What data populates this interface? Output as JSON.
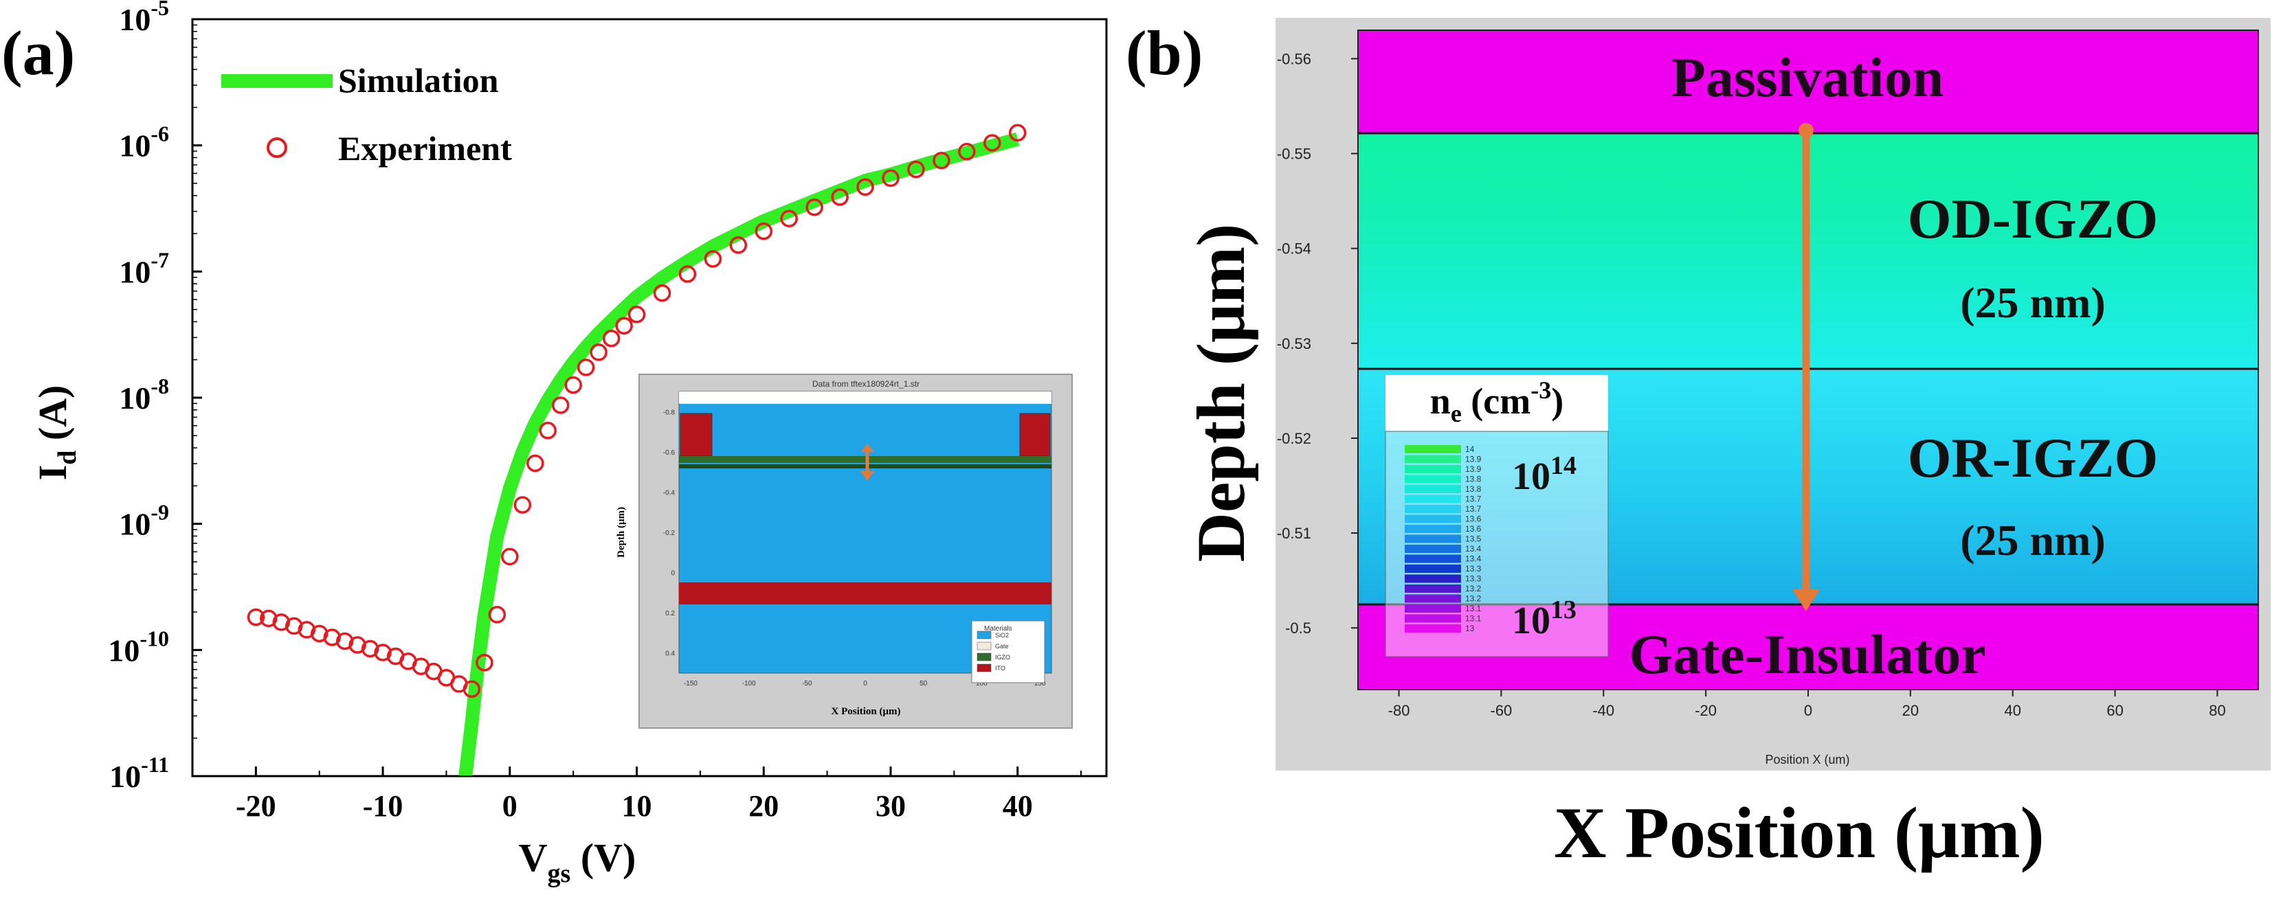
{
  "chart_data": [
    {
      "panel_label": "(a)",
      "type": "scatter",
      "xlabel": {
        "main": "V",
        "sub": "gs",
        "unit": " (V)"
      },
      "ylabel": {
        "main": "I",
        "sub": "d",
        "unit": " (A)"
      },
      "xlim": [
        -25,
        47
      ],
      "ylim_log10": [
        -11,
        -5
      ],
      "x_ticks": [
        -20,
        -10,
        0,
        10,
        20,
        30,
        40
      ],
      "y_ticks_exp": [
        -11,
        -10,
        -9,
        -8,
        -7,
        -6,
        -5
      ],
      "legend": {
        "position": "top-left",
        "simulation": "Simulation",
        "experiment": "Experiment"
      },
      "series": [
        {
          "name": "Simulation",
          "style": "line",
          "color": "#33ee22",
          "x": [
            -3.5,
            -3,
            -2.5,
            -2,
            -1,
            0,
            1,
            2,
            3,
            4,
            5,
            6,
            7,
            8,
            10,
            12,
            14,
            16,
            18,
            20,
            22,
            25,
            28,
            30,
            33,
            36,
            40
          ],
          "log10_y": [
            -11.0,
            -10.58,
            -10.12,
            -9.72,
            -9.1,
            -8.72,
            -8.43,
            -8.2,
            -8.02,
            -7.86,
            -7.72,
            -7.6,
            -7.49,
            -7.39,
            -7.2,
            -7.05,
            -6.92,
            -6.8,
            -6.7,
            -6.6,
            -6.52,
            -6.4,
            -6.28,
            -6.23,
            -6.14,
            -6.06,
            -5.95
          ]
        },
        {
          "name": "Experiment",
          "style": "markers",
          "marker_color": "#e8191f",
          "x": [
            -20,
            -19,
            -18,
            -17,
            -16,
            -15,
            -14,
            -13,
            -12,
            -11,
            -10,
            -9,
            -8,
            -7,
            -6,
            -5,
            -4,
            -3,
            -2,
            -1,
            0,
            1,
            2,
            3,
            4,
            5,
            6,
            7,
            8,
            9,
            10,
            12,
            14,
            16,
            18,
            20,
            22,
            24,
            26,
            28,
            30,
            32,
            34,
            36,
            38,
            40
          ],
          "log10_y": [
            -9.74,
            -9.75,
            -9.78,
            -9.81,
            -9.84,
            -9.87,
            -9.9,
            -9.93,
            -9.96,
            -9.99,
            -10.02,
            -10.05,
            -10.09,
            -10.13,
            -10.17,
            -10.22,
            -10.27,
            -10.31,
            -10.1,
            -9.72,
            -9.26,
            -8.85,
            -8.52,
            -8.26,
            -8.06,
            -7.9,
            -7.76,
            -7.64,
            -7.53,
            -7.43,
            -7.34,
            -7.17,
            -7.02,
            -6.9,
            -6.79,
            -6.68,
            -6.58,
            -6.49,
            -6.41,
            -6.33,
            -6.26,
            -6.19,
            -6.12,
            -6.05,
            -5.98,
            -5.9
          ]
        }
      ],
      "inset": {
        "title": "Data from tftex180924rt_1.str",
        "xlabel": "X Position (μm)",
        "ylabel": "Depth (μm)",
        "x_ticks": [
          -150,
          -100,
          -50,
          0,
          50,
          100,
          150
        ],
        "y_ticks": [
          -0.8,
          -0.6,
          -0.4,
          -0.2,
          0,
          0.2,
          0.4
        ],
        "legend_title": "Materials",
        "materials": [
          "SiO2",
          "Gate",
          "IGZO",
          "ITO"
        ],
        "material_colors": [
          "#1fa4e8",
          "#f0ede0",
          "#2e6e2a",
          "#b5141c"
        ]
      }
    },
    {
      "panel_label": "(b)",
      "type": "heatmap",
      "xlabel": "X Position (μm)",
      "ylabel": "Depth (μm)",
      "inner_xlabel": "Position X (um)",
      "xlim": [
        -88,
        88
      ],
      "ylim": [
        -0.563,
        -0.4935
      ],
      "x_ticks": [
        -80,
        -60,
        -40,
        -20,
        0,
        20,
        40,
        60,
        80
      ],
      "y_ticks": [
        -0.56,
        -0.55,
        -0.54,
        -0.53,
        -0.52,
        -0.51,
        -0.5
      ],
      "layers": [
        {
          "name": "Passivation",
          "top": -0.563,
          "bottom": -0.55,
          "color": "#ee00ee"
        },
        {
          "name": "OD-IGZO",
          "thickness": "(25 nm)",
          "top": -0.55,
          "bottom": -0.525,
          "color_top": "#12f2a2",
          "color_bottom": "#20eeee"
        },
        {
          "name": "OR-IGZO",
          "thickness": "(25 nm)",
          "top": -0.525,
          "bottom": -0.5,
          "color_top": "#2ee6f6",
          "color_bottom": "#1aaee6"
        },
        {
          "name": "Gate-Insulator",
          "top": -0.5,
          "bottom": -0.4935,
          "color": "#ee00ee"
        }
      ],
      "arrow": {
        "x": 0,
        "from": -0.55,
        "to": -0.5,
        "color": "#e47a3a"
      },
      "legend": {
        "title_main": "n",
        "title_sub": "e",
        "title_unit": " (cm",
        "title_exp": "-3",
        "title_close": ")",
        "max_base": "10",
        "max_exp": "14",
        "min_base": "10",
        "min_exp": "13",
        "levels": [
          "14",
          "13.9",
          "13.9",
          "13.8",
          "13.8",
          "13.7",
          "13.7",
          "13.6",
          "13.6",
          "13.5",
          "13.4",
          "13.4",
          "13.3",
          "13.3",
          "13.2",
          "13.2",
          "13.1",
          "13.1",
          "13"
        ],
        "colors": [
          "#37e837",
          "#22f08a",
          "#15f0a8",
          "#12f0c4",
          "#18e8d8",
          "#22e4ec",
          "#26d0f0",
          "#22bcf0",
          "#1ea8ee",
          "#1a8ce8",
          "#1670e0",
          "#1250d8",
          "#1238cc",
          "#2a20c8",
          "#5418d0",
          "#7a14d8",
          "#9a12e0",
          "#c010e8",
          "#e40eee"
        ]
      }
    }
  ]
}
